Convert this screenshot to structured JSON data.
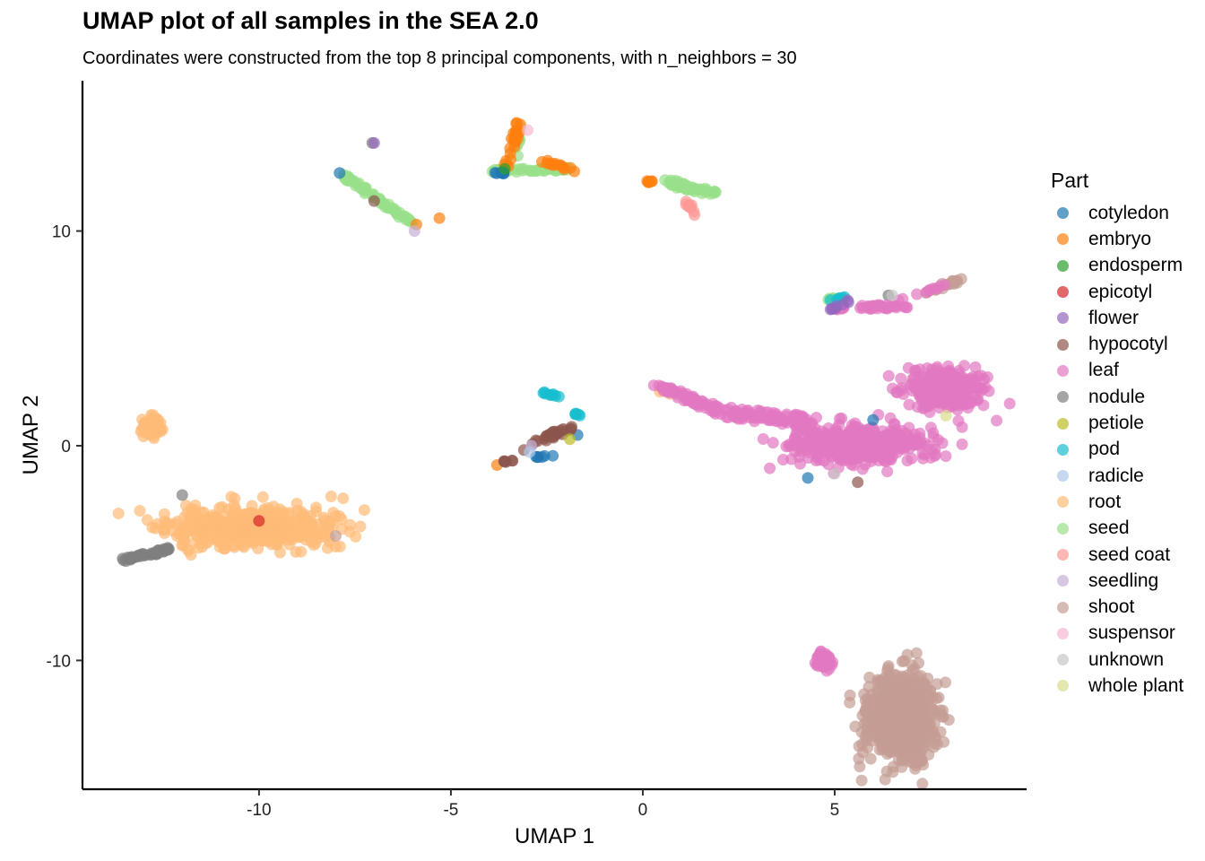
{
  "chart_data": {
    "type": "scatter",
    "title": "UMAP plot of all samples in the SEA 2.0",
    "subtitle": "Coordinates were constructed from the top 8 principal components, with n_neighbors = 30",
    "xlabel": "UMAP 1",
    "ylabel": "UMAP 2",
    "xlim": [
      -14.6,
      10.0
    ],
    "ylim": [
      -16.0,
      17.0
    ],
    "xticks": [
      -10,
      -5,
      0,
      5
    ],
    "xtick_labels": [
      "-10",
      "-5",
      "0",
      "5"
    ],
    "yticks": [
      -10,
      0,
      10
    ],
    "ytick_labels": [
      "-10",
      "0",
      "10"
    ],
    "grid": false,
    "legend": {
      "title": "Part",
      "position": "right",
      "entries": [
        "cotyledon",
        "embryo",
        "endosperm",
        "epicotyl",
        "flower",
        "hypocotyl",
        "leaf",
        "nodule",
        "petiole",
        "pod",
        "radicle",
        "root",
        "seed",
        "seed coat",
        "seedling",
        "shoot",
        "suspensor",
        "unknown",
        "whole plant"
      ]
    },
    "colors": {
      "cotyledon": "#1f77b4",
      "embryo": "#ff7f0e",
      "endosperm": "#2ca02c",
      "epicotyl": "#d62728",
      "flower": "#9467bd",
      "hypocotyl": "#8c564b",
      "leaf": "#e377c2",
      "nodule": "#7f7f7f",
      "petiole": "#bcbd22",
      "pod": "#17becf",
      "radicle": "#aec7e8",
      "root": "#ffbb78",
      "seed": "#98df8a",
      "seed coat": "#ff9896",
      "seedling": "#c5b0d5",
      "shoot": "#c49c94",
      "suspensor": "#f7b6d2",
      "unknown": "#c7c7c7",
      "whole plant": "#dbdb8d"
    },
    "series": [
      {
        "name": "root",
        "clusters": [
          {
            "shape": "blob",
            "cx": -10.3,
            "cy": -3.8,
            "rx": 2.1,
            "ry": 0.9,
            "n": 520,
            "seed": 11
          },
          {
            "shape": "blob",
            "cx": -12.8,
            "cy": 0.9,
            "rx": 0.25,
            "ry": 0.45,
            "n": 60,
            "seed": 12
          },
          {
            "shape": "line",
            "x1": 0.5,
            "y1": 2.6,
            "x2": 0.9,
            "y2": 2.4,
            "w": 0.08,
            "n": 6,
            "seed": 13
          }
        ]
      },
      {
        "name": "nodule",
        "clusters": [
          {
            "shape": "line",
            "x1": -13.5,
            "y1": -5.3,
            "x2": -12.3,
            "y2": -4.8,
            "w": 0.08,
            "n": 45,
            "seed": 21
          },
          {
            "shape": "point",
            "x": -12.0,
            "y": -2.3,
            "n": 1
          },
          {
            "shape": "point",
            "x": -7.05,
            "y": 14.1,
            "n": 1
          },
          {
            "shape": "point",
            "x": 6.4,
            "y": 7.0,
            "n": 1
          }
        ]
      },
      {
        "name": "shoot",
        "clusters": [
          {
            "shape": "blob",
            "cx": 6.75,
            "cy": -12.7,
            "rx": 0.85,
            "ry": 1.9,
            "n": 900,
            "seed": 31
          },
          {
            "shape": "line",
            "x1": 7.4,
            "y1": 7.1,
            "x2": 8.3,
            "y2": 7.8,
            "w": 0.1,
            "n": 18,
            "seed": 32
          },
          {
            "shape": "point",
            "x": -8.0,
            "y": -4.2,
            "n": 1
          },
          {
            "shape": "point",
            "x": -2.4,
            "y": 0.5,
            "n": 1
          }
        ]
      },
      {
        "name": "leaf",
        "clusters": [
          {
            "shape": "line",
            "x1": 0.4,
            "y1": 2.8,
            "x2": 2.0,
            "y2": 1.6,
            "w": 0.15,
            "n": 60,
            "seed": 41
          },
          {
            "shape": "line",
            "x1": 2.0,
            "y1": 1.6,
            "x2": 4.5,
            "y2": 1.1,
            "w": 0.25,
            "n": 90,
            "seed": 42
          },
          {
            "shape": "blob",
            "cx": 5.6,
            "cy": 0.0,
            "rx": 1.7,
            "ry": 0.9,
            "n": 450,
            "seed": 43
          },
          {
            "shape": "blob",
            "cx": 7.8,
            "cy": 2.6,
            "rx": 1.1,
            "ry": 0.9,
            "n": 260,
            "seed": 44
          },
          {
            "shape": "blob",
            "cx": 4.7,
            "cy": -10.0,
            "rx": 0.22,
            "ry": 0.35,
            "n": 45,
            "seed": 45
          },
          {
            "shape": "line",
            "x1": 5.0,
            "y1": 6.4,
            "x2": 6.8,
            "y2": 6.5,
            "w": 0.1,
            "n": 40,
            "seed": 46
          },
          {
            "shape": "line",
            "x1": 6.6,
            "y1": 6.7,
            "x2": 8.2,
            "y2": 7.7,
            "w": 0.05,
            "n": 10,
            "seed": 47
          },
          {
            "shape": "point",
            "x": 7.3,
            "y": -0.6,
            "n": 1
          }
        ]
      },
      {
        "name": "seed",
        "clusters": [
          {
            "shape": "line",
            "x1": -7.9,
            "y1": 12.7,
            "x2": -6.0,
            "y2": 10.4,
            "w": 0.08,
            "n": 60,
            "seed": 51
          },
          {
            "shape": "line",
            "x1": -3.9,
            "y1": 12.8,
            "x2": -1.8,
            "y2": 12.9,
            "w": 0.07,
            "n": 45,
            "seed": 52
          },
          {
            "shape": "line",
            "x1": 0.6,
            "y1": 12.3,
            "x2": 1.9,
            "y2": 11.7,
            "w": 0.12,
            "n": 50,
            "seed": 53
          },
          {
            "shape": "line",
            "x1": -3.3,
            "y1": 13.0,
            "x2": -3.2,
            "y2": 15.0,
            "w": 0.05,
            "n": 8,
            "seed": 54
          },
          {
            "shape": "line",
            "x1": 4.8,
            "y1": 6.8,
            "x2": 5.1,
            "y2": 6.9,
            "w": 0.05,
            "n": 5,
            "seed": 55
          }
        ]
      },
      {
        "name": "embryo",
        "clusters": [
          {
            "shape": "line",
            "x1": -3.55,
            "y1": 13.0,
            "x2": -3.2,
            "y2": 15.2,
            "w": 0.08,
            "n": 25,
            "seed": 61
          },
          {
            "shape": "line",
            "x1": -2.6,
            "y1": 13.3,
            "x2": -1.8,
            "y2": 12.8,
            "w": 0.07,
            "n": 14,
            "seed": 62
          },
          {
            "shape": "line",
            "x1": 0.1,
            "y1": 12.3,
            "x2": 0.5,
            "y2": 12.3,
            "w": 0.04,
            "n": 6,
            "seed": 63
          },
          {
            "shape": "point",
            "x": -5.3,
            "y": 10.6,
            "n": 1
          },
          {
            "shape": "point",
            "x": -5.9,
            "y": 10.3,
            "n": 1
          },
          {
            "shape": "point",
            "x": -3.8,
            "y": -0.9,
            "n": 1
          }
        ]
      },
      {
        "name": "cotyledon",
        "clusters": [
          {
            "shape": "line",
            "x1": -3.9,
            "y1": 12.7,
            "x2": -3.5,
            "y2": 12.7,
            "w": 0.04,
            "n": 8,
            "seed": 71
          },
          {
            "shape": "point",
            "x": -7.9,
            "y": 12.7,
            "n": 1
          },
          {
            "shape": "line",
            "x1": -2.8,
            "y1": -0.5,
            "x2": -2.3,
            "y2": -0.5,
            "w": 0.05,
            "n": 6,
            "seed": 72
          },
          {
            "shape": "point",
            "x": 4.3,
            "y": -1.5,
            "n": 1
          },
          {
            "shape": "point",
            "x": 6.0,
            "y": 1.2,
            "n": 1
          },
          {
            "shape": "point",
            "x": -1.7,
            "y": 0.5,
            "n": 1
          }
        ]
      },
      {
        "name": "pod",
        "clusters": [
          {
            "shape": "line",
            "x1": -2.6,
            "y1": 2.5,
            "x2": -2.2,
            "y2": 2.3,
            "w": 0.04,
            "n": 8,
            "seed": 81
          },
          {
            "shape": "line",
            "x1": -2.0,
            "y1": 1.6,
            "x2": -1.6,
            "y2": 1.4,
            "w": 0.04,
            "n": 5,
            "seed": 82
          },
          {
            "shape": "line",
            "x1": 4.8,
            "y1": 6.8,
            "x2": 5.3,
            "y2": 6.9,
            "w": 0.05,
            "n": 6,
            "seed": 83
          }
        ]
      },
      {
        "name": "hypocotyl",
        "clusters": [
          {
            "shape": "line",
            "x1": -2.9,
            "y1": 0.1,
            "x2": -1.9,
            "y2": 0.8,
            "w": 0.1,
            "n": 25,
            "seed": 91
          },
          {
            "shape": "line",
            "x1": -3.8,
            "y1": -0.8,
            "x2": -3.4,
            "y2": -0.7,
            "w": 0.04,
            "n": 6,
            "seed": 92
          },
          {
            "shape": "point",
            "x": -3.1,
            "y": -0.2,
            "n": 1
          },
          {
            "shape": "point",
            "x": -7.0,
            "y": 11.4,
            "n": 1
          },
          {
            "shape": "point",
            "x": 5.6,
            "y": -1.7,
            "n": 1
          }
        ]
      },
      {
        "name": "flower",
        "clusters": [
          {
            "shape": "line",
            "x1": 4.9,
            "y1": 6.3,
            "x2": 5.6,
            "y2": 7.0,
            "w": 0.05,
            "n": 8,
            "seed": 101
          },
          {
            "shape": "point",
            "x": -7.0,
            "y": 14.1,
            "n": 1
          }
        ]
      },
      {
        "name": "seed coat",
        "clusters": [
          {
            "shape": "line",
            "x1": 1.1,
            "y1": 11.5,
            "x2": 1.3,
            "y2": 10.8,
            "w": 0.08,
            "n": 10,
            "seed": 111
          }
        ]
      },
      {
        "name": "seedling",
        "clusters": [
          {
            "shape": "point",
            "x": -5.95,
            "y": 10.0,
            "n": 1
          },
          {
            "shape": "point",
            "x": -2.9,
            "y": 0.0,
            "n": 1
          }
        ]
      },
      {
        "name": "unknown",
        "clusters": [
          {
            "shape": "point",
            "x": 6.5,
            "y": 7.0,
            "n": 1
          },
          {
            "shape": "point",
            "x": 5.0,
            "y": -1.3,
            "n": 1
          }
        ]
      },
      {
        "name": "petiole",
        "clusters": [
          {
            "shape": "point",
            "x": -1.9,
            "y": 0.3,
            "n": 1
          }
        ]
      },
      {
        "name": "radicle",
        "clusters": [
          {
            "shape": "point",
            "x": -2.95,
            "y": -0.3,
            "n": 1
          }
        ]
      },
      {
        "name": "suspensor",
        "clusters": [
          {
            "shape": "point",
            "x": -3.0,
            "y": 14.7,
            "n": 1
          }
        ]
      },
      {
        "name": "endosperm",
        "clusters": [
          {
            "shape": "point",
            "x": -3.6,
            "y": 12.9,
            "n": 1
          }
        ]
      },
      {
        "name": "epicotyl",
        "clusters": [
          {
            "shape": "point",
            "x": -10.0,
            "y": -3.5,
            "n": 1
          }
        ]
      },
      {
        "name": "whole plant",
        "clusters": [
          {
            "shape": "point",
            "x": 7.9,
            "y": 1.4,
            "n": 1
          }
        ]
      }
    ]
  }
}
